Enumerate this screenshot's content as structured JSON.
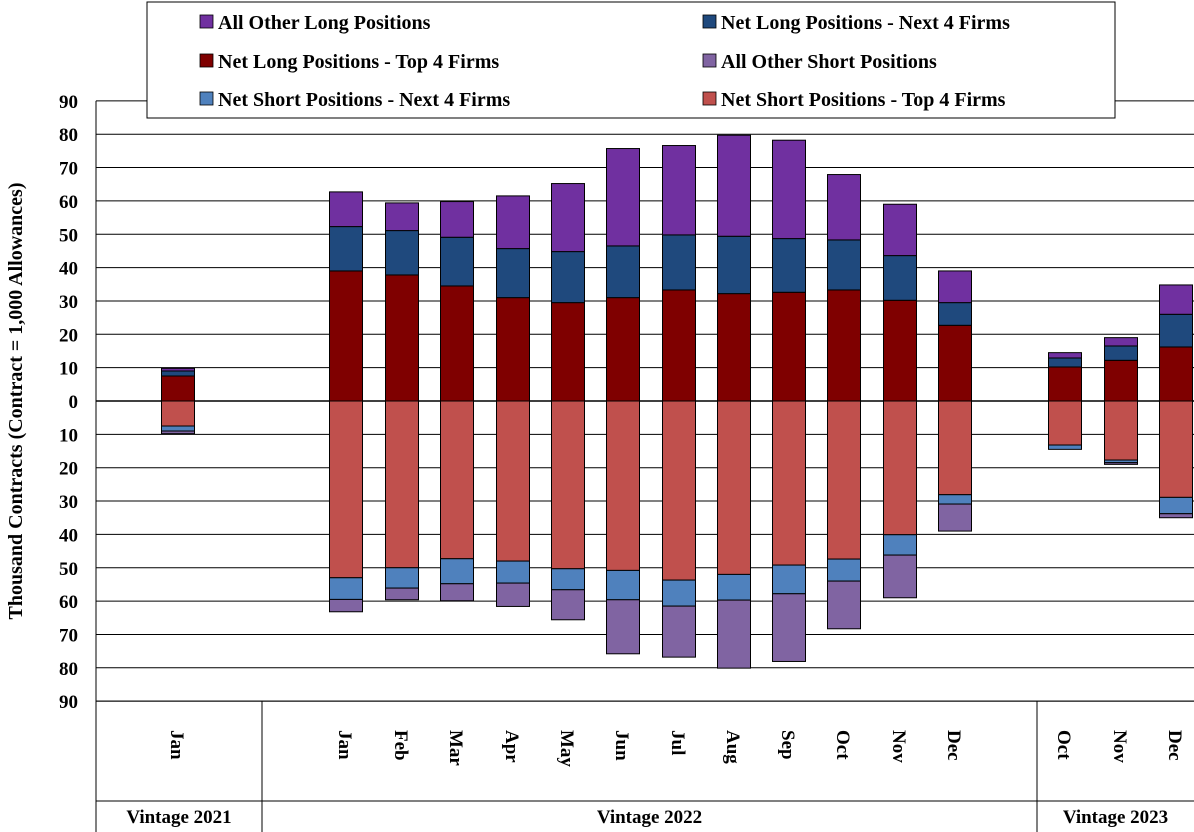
{
  "chart_data": {
    "type": "bar",
    "subtype": "stacked-diverging",
    "ylabel": "Thousand Contracts (Contract = 1,000 Allowances)",
    "yticks": [
      "90",
      "80",
      "70",
      "60",
      "50",
      "40",
      "30",
      "20",
      "10",
      "0",
      "10",
      "20",
      "30",
      "40",
      "50",
      "60",
      "70",
      "80",
      "90"
    ],
    "ylim": [
      -90,
      90
    ],
    "grid": true,
    "legend_position": "top",
    "groups": [
      {
        "label": "Vintage 2021",
        "categories": [
          "Jan"
        ]
      },
      {
        "label": "Vintage 2022",
        "categories": [
          "Jan",
          "Feb",
          "Mar",
          "Apr",
          "May",
          "Jun",
          "Jul",
          "Aug",
          "Sep",
          "Oct",
          "Nov",
          "Dec"
        ]
      },
      {
        "label": "Vintage 2023",
        "categories": [
          "Oct",
          "Nov",
          "Dec"
        ]
      }
    ],
    "long_series": [
      {
        "name": "Net Long Positions - Top 4 Firms",
        "color": "#7f0000",
        "values": [
          7.5,
          39,
          37.8,
          34.5,
          31,
          29.5,
          31,
          33.3,
          32.2,
          32.6,
          33.3,
          30.2,
          22.7,
          10.2,
          12.2,
          16.2
        ]
      },
      {
        "name": "Net Long Positions - Next 4 Firms",
        "color": "#1f497d",
        "values": [
          1.5,
          13.3,
          13.3,
          14.6,
          14.7,
          15.3,
          15.5,
          16.5,
          17.2,
          16.1,
          15,
          13.4,
          6.8,
          2.7,
          4.3,
          9.8
        ]
      },
      {
        "name": "All Other Long Positions",
        "color": "#7030a0",
        "values": [
          0.8,
          10.4,
          8.3,
          10.7,
          15.8,
          20.4,
          29.2,
          26.8,
          30.3,
          29.5,
          19.6,
          15.4,
          9.5,
          1.6,
          2.5,
          8.8
        ]
      }
    ],
    "short_series": [
      {
        "name": "Net Short Positions - Top 4 Firms",
        "color": "#c0504d",
        "values": [
          7.5,
          53,
          50,
          47.3,
          48,
          50.3,
          50.8,
          53.7,
          52,
          49.2,
          47.4,
          40.1,
          28.1,
          13.2,
          17.7,
          28.9
        ]
      },
      {
        "name": "Net Short Positions - Next 4 Firms",
        "color": "#4f81bd",
        "values": [
          1.5,
          6.5,
          6.1,
          7.5,
          6.6,
          6.3,
          8.8,
          7.8,
          7.7,
          8.6,
          6.6,
          6.1,
          2.8,
          1.3,
          0.8,
          4.9
        ]
      },
      {
        "name": "All Other Short Positions",
        "color": "#8064a2",
        "values": [
          0.8,
          3.7,
          3.5,
          5.1,
          7,
          9,
          16.2,
          15.3,
          20.4,
          20.3,
          14.3,
          12.8,
          8.1,
          0,
          0.5,
          1.2
        ]
      }
    ],
    "legend": [
      {
        "name": "All Other Long Positions",
        "color": "#7030a0"
      },
      {
        "name": "Net Long Positions - Next 4 Firms",
        "color": "#1f497d"
      },
      {
        "name": "Net Long Positions - Top 4 Firms",
        "color": "#7f0000"
      },
      {
        "name": "All Other Short Positions",
        "color": "#8064a2"
      },
      {
        "name": "Net Short Positions - Next 4 Firms",
        "color": "#4f81bd"
      },
      {
        "name": "Net Short Positions - Top 4 Firms",
        "color": "#c0504d"
      }
    ]
  }
}
